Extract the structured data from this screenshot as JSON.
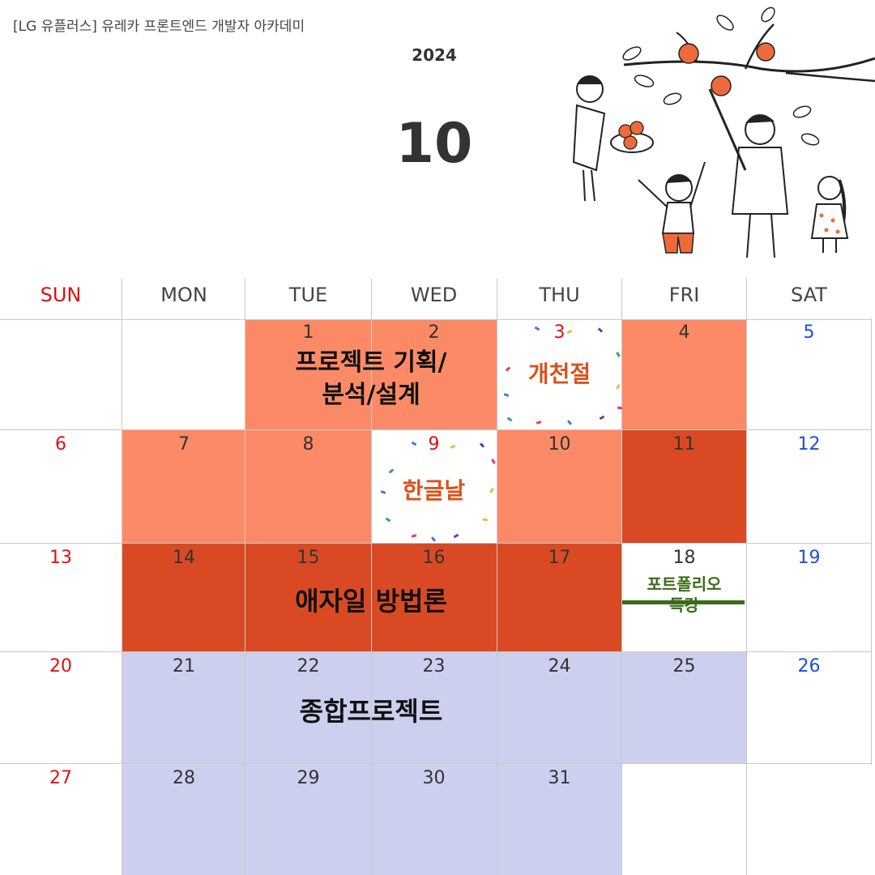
{
  "header": {
    "brand": "[LG 유플러스] 유레카 프론트엔드 개발자 아카데미",
    "year": "2024",
    "month": "10"
  },
  "weekdays": [
    "SUN",
    "MON",
    "TUE",
    "WED",
    "THU",
    "FRI",
    "SAT"
  ],
  "colors": {
    "light_orange": "#fd8a67",
    "dark_orange": "#d94a24",
    "lavender": "#ccd0ee",
    "sunday": "#e01010",
    "saturday": "#1a4fe0"
  },
  "days": {
    "d1": "1",
    "d2": "2",
    "d3": "3",
    "d4": "4",
    "d5": "5",
    "d6": "6",
    "d7": "7",
    "d8": "8",
    "d9": "9",
    "d10": "10",
    "d11": "11",
    "d12": "12",
    "d13": "13",
    "d14": "14",
    "d15": "15",
    "d16": "16",
    "d17": "17",
    "d18": "18",
    "d19": "19",
    "d20": "20",
    "d21": "21",
    "d22": "22",
    "d23": "23",
    "d24": "24",
    "d25": "25",
    "d26": "26",
    "d27": "27",
    "d28": "28",
    "d29": "29",
    "d30": "30",
    "d31": "31"
  },
  "events": {
    "planning_line1": "프로젝트 기획/",
    "planning_line2": "분석/설계",
    "agile": "애자일 방법론",
    "project": "종합프로젝트",
    "portfolio_line1": "포트폴리오",
    "portfolio_line2": "특강"
  },
  "holidays": {
    "gaecheonjeol": "개천절",
    "hangeulnal": "한글날"
  }
}
